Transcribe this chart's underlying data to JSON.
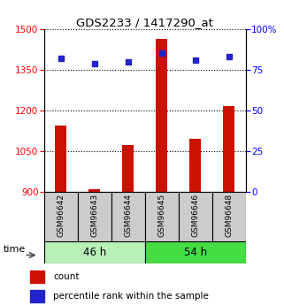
{
  "title": "GDS2233 / 1417290_at",
  "samples": [
    "GSM96642",
    "GSM96643",
    "GSM96644",
    "GSM96645",
    "GSM96646",
    "GSM96648"
  ],
  "groups": [
    {
      "label": "46 h",
      "indices": [
        0,
        1,
        2
      ],
      "color": "#b8f0b8"
    },
    {
      "label": "54 h",
      "indices": [
        3,
        4,
        5
      ],
      "color": "#44dd44"
    }
  ],
  "counts": [
    1145,
    912,
    1075,
    1465,
    1095,
    1218
  ],
  "percentiles": [
    82,
    79,
    80,
    85,
    81,
    83
  ],
  "left_ylim": [
    900,
    1500
  ],
  "right_ylim": [
    0,
    100
  ],
  "left_yticks": [
    900,
    1050,
    1200,
    1350,
    1500
  ],
  "right_yticks": [
    0,
    25,
    50,
    75,
    100
  ],
  "bar_color": "#cc1100",
  "dot_color": "#2222cc",
  "label_bg_color": "#cccccc",
  "time_label": "time",
  "legend_count": "count",
  "legend_percentile": "percentile rank within the sample",
  "bar_width": 0.35
}
